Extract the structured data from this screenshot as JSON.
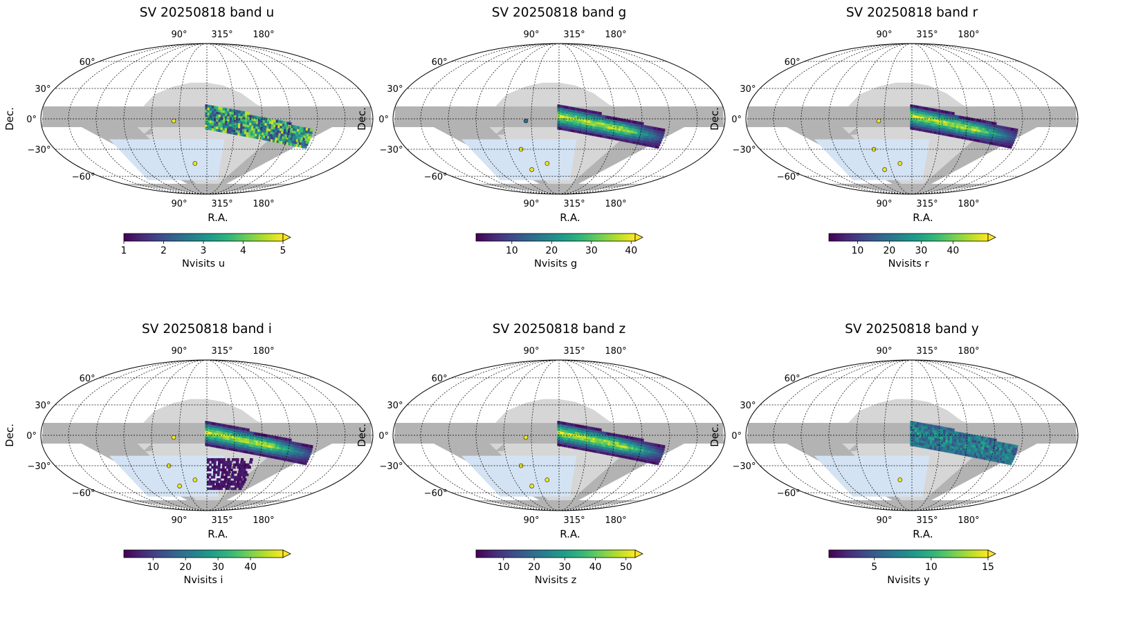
{
  "chart_data": [
    {
      "type": "heatmap",
      "title": "SV 20250818 band u",
      "xlabel": "R.A.",
      "ylabel": "Dec.",
      "top_ticks": [
        "90°",
        "315°",
        "180°"
      ],
      "bottom_ticks": [
        "90°",
        "315°",
        "180°"
      ],
      "dec_ticks": [
        "60°",
        "30°",
        "0°",
        "−30°",
        "−60°"
      ],
      "colorbar": {
        "label": "Nvisits u",
        "ticks": [
          "1",
          "2",
          "3",
          "4",
          "5"
        ],
        "tick_values": [
          1,
          2,
          3,
          4,
          5
        ],
        "range": [
          1,
          5
        ],
        "extend": "max",
        "cmap": "viridis"
      },
      "coverage_level": 0.45
    },
    {
      "type": "heatmap",
      "title": "SV 20250818 band g",
      "xlabel": "R.A.",
      "ylabel": "Dec.",
      "top_ticks": [
        "90°",
        "315°",
        "180°"
      ],
      "bottom_ticks": [
        "90°",
        "315°",
        "180°"
      ],
      "dec_ticks": [
        "60°",
        "30°",
        "0°",
        "−30°",
        "−60°"
      ],
      "colorbar": {
        "label": "Nvisits g",
        "ticks": [
          "10",
          "20",
          "30",
          "40"
        ],
        "tick_values": [
          10,
          20,
          30,
          40
        ],
        "range": [
          1,
          41
        ],
        "extend": "max",
        "cmap": "viridis"
      },
      "coverage_level": 0.6
    },
    {
      "type": "heatmap",
      "title": "SV 20250818 band r",
      "xlabel": "R.A.",
      "ylabel": "Dec.",
      "top_ticks": [
        "90°",
        "315°",
        "180°"
      ],
      "bottom_ticks": [
        "90°",
        "315°",
        "180°"
      ],
      "dec_ticks": [
        "60°",
        "30°",
        "0°",
        "−30°",
        "−60°"
      ],
      "colorbar": {
        "label": "Nvisits r",
        "ticks": [
          "10",
          "20",
          "30",
          "40"
        ],
        "tick_values": [
          10,
          20,
          30,
          40
        ],
        "range": [
          1,
          51
        ],
        "extend": "max",
        "cmap": "viridis"
      },
      "coverage_level": 0.6
    },
    {
      "type": "heatmap",
      "title": "SV 20250818 band i",
      "xlabel": "R.A.",
      "ylabel": "Dec.",
      "top_ticks": [
        "90°",
        "315°",
        "180°"
      ],
      "bottom_ticks": [
        "90°",
        "315°",
        "180°"
      ],
      "dec_ticks": [
        "60°",
        "30°",
        "0°",
        "−30°",
        "−60°"
      ],
      "colorbar": {
        "label": "Nvisits i",
        "ticks": [
          "10",
          "20",
          "30",
          "40"
        ],
        "tick_values": [
          10,
          20,
          30,
          40
        ],
        "range": [
          1,
          50
        ],
        "extend": "max",
        "cmap": "viridis"
      },
      "coverage_level": 0.6
    },
    {
      "type": "heatmap",
      "title": "SV 20250818 band z",
      "xlabel": "R.A.",
      "ylabel": "Dec.",
      "top_ticks": [
        "90°",
        "315°",
        "180°"
      ],
      "bottom_ticks": [
        "90°",
        "315°",
        "180°"
      ],
      "dec_ticks": [
        "60°",
        "30°",
        "0°",
        "−30°",
        "−60°"
      ],
      "colorbar": {
        "label": "Nvisits z",
        "ticks": [
          "10",
          "20",
          "30",
          "40",
          "50"
        ],
        "tick_values": [
          10,
          20,
          30,
          40,
          50
        ],
        "range": [
          1,
          53
        ],
        "extend": "max",
        "cmap": "viridis"
      },
      "coverage_level": 0.6
    },
    {
      "type": "heatmap",
      "title": "SV 20250818 band y",
      "xlabel": "R.A.",
      "ylabel": "Dec.",
      "top_ticks": [
        "90°",
        "315°",
        "180°"
      ],
      "bottom_ticks": [
        "90°",
        "315°",
        "180°"
      ],
      "dec_ticks": [
        "60°",
        "30°",
        "0°",
        "−30°",
        "−60°"
      ],
      "colorbar": {
        "label": "Nvisits y",
        "ticks": [
          "5",
          "10",
          "15"
        ],
        "tick_values": [
          5,
          10,
          15
        ],
        "range": [
          1,
          15
        ],
        "extend": "max",
        "cmap": "viridis"
      },
      "coverage_level": 0.5
    }
  ],
  "colors": {
    "footprint_dark": "#b3b3b3",
    "footprint_light": "#d6d6d6",
    "footprint_blue": "#d3e3f3",
    "viridis": [
      "#440154",
      "#482878",
      "#3e4a89",
      "#31688e",
      "#26828e",
      "#1f9e89",
      "#35b779",
      "#6ece58",
      "#b5de2b",
      "#fde725"
    ]
  }
}
